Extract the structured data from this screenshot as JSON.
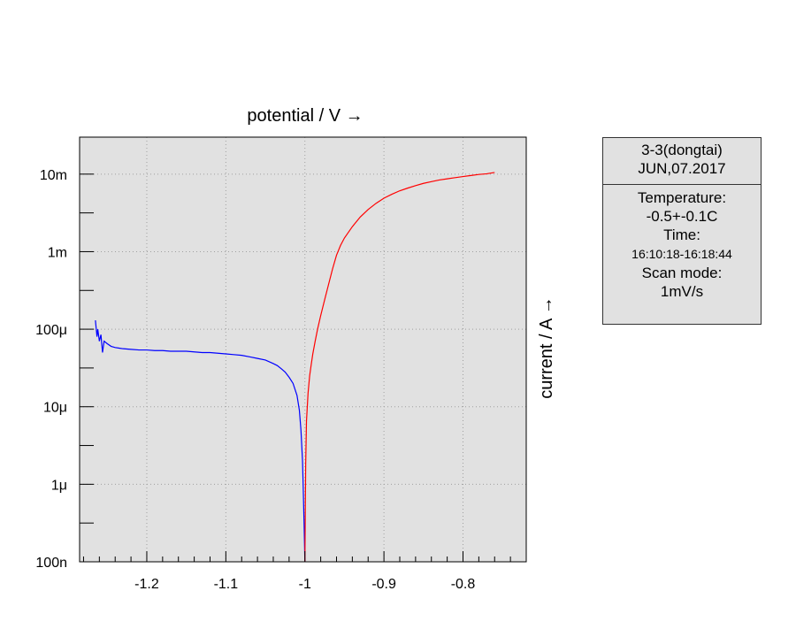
{
  "chart_data": {
    "type": "line",
    "xlabel": "potential / V →",
    "ylabel": "current / A →",
    "xlim": [
      -1.285,
      -0.72
    ],
    "ylim": [
      1e-07,
      0.03
    ],
    "yscale": "log",
    "xticks": [
      -1.2,
      -1.1,
      -1.0,
      -0.9,
      -0.8
    ],
    "xtick_labels": [
      "-1.2",
      "-1.1",
      "-1",
      "-0.9",
      "-0.8"
    ],
    "yticks": [
      1e-07,
      1e-06,
      1e-05,
      0.0001,
      0.001,
      0.01
    ],
    "ytick_labels": [
      "100n",
      "1μ",
      "10μ",
      "100μ",
      "1m",
      "10m"
    ],
    "grid": true,
    "background": "#e1e1e1",
    "series": [
      {
        "color": "#0000ff",
        "x": [
          -1.265,
          -1.263,
          -1.262,
          -1.26,
          -1.258,
          -1.256,
          -1.254,
          -1.25,
          -1.245,
          -1.24,
          -1.235,
          -1.23,
          -1.22,
          -1.21,
          -1.2,
          -1.19,
          -1.18,
          -1.17,
          -1.16,
          -1.15,
          -1.14,
          -1.13,
          -1.12,
          -1.11,
          -1.1,
          -1.09,
          -1.08,
          -1.07,
          -1.06,
          -1.05,
          -1.04,
          -1.035,
          -1.03,
          -1.025,
          -1.02,
          -1.015,
          -1.01,
          -1.007,
          -1.005,
          -1.003,
          -1.002,
          -1.001,
          -1.0
        ],
        "y": [
          0.00013,
          8e-05,
          0.0001,
          7e-05,
          8.5e-05,
          5e-05,
          7e-05,
          6.5e-05,
          6e-05,
          5.8e-05,
          5.7e-05,
          5.6e-05,
          5.5e-05,
          5.4e-05,
          5.4e-05,
          5.3e-05,
          5.3e-05,
          5.2e-05,
          5.2e-05,
          5.2e-05,
          5.1e-05,
          5e-05,
          5e-05,
          4.9e-05,
          4.8e-05,
          4.7e-05,
          4.6e-05,
          4.4e-05,
          4.2e-05,
          4e-05,
          3.6e-05,
          3.4e-05,
          3.1e-05,
          2.8e-05,
          2.4e-05,
          2e-05,
          1.4e-05,
          9e-06,
          5e-06,
          2e-06,
          8e-07,
          3e-07,
          1e-07
        ]
      },
      {
        "color": "#ff0000",
        "x": [
          -1.0,
          -0.999,
          -0.998,
          -0.996,
          -0.994,
          -0.992,
          -0.99,
          -0.987,
          -0.984,
          -0.98,
          -0.975,
          -0.97,
          -0.965,
          -0.96,
          -0.955,
          -0.95,
          -0.94,
          -0.93,
          -0.92,
          -0.91,
          -0.9,
          -0.89,
          -0.88,
          -0.87,
          -0.86,
          -0.85,
          -0.84,
          -0.83,
          -0.82,
          -0.81,
          -0.8,
          -0.79,
          -0.78,
          -0.77,
          -0.765,
          -0.76
        ],
        "y": [
          1e-07,
          1.8e-06,
          6.5e-06,
          1.5e-05,
          2.5e-05,
          3.5e-05,
          4.8e-05,
          7e-05,
          0.0001,
          0.00015,
          0.00024,
          0.00038,
          0.0006,
          0.0009,
          0.0012,
          0.0015,
          0.0021,
          0.0028,
          0.0035,
          0.0042,
          0.0049,
          0.0055,
          0.0061,
          0.0066,
          0.0071,
          0.0076,
          0.008,
          0.0084,
          0.0087,
          0.009,
          0.0093,
          0.0096,
          0.0099,
          0.0101,
          0.0103,
          0.0105
        ]
      }
    ]
  },
  "infobox": {
    "title": "3-3(dongtai)",
    "date": "JUN,07.2017",
    "temperature_label": "Temperature:",
    "temperature_value": "-0.5+-0.1C",
    "time_label": "Time:",
    "time_value": "16:10:18-16:18:44",
    "scan_label": "Scan mode:",
    "scan_value": "1mV/s"
  }
}
